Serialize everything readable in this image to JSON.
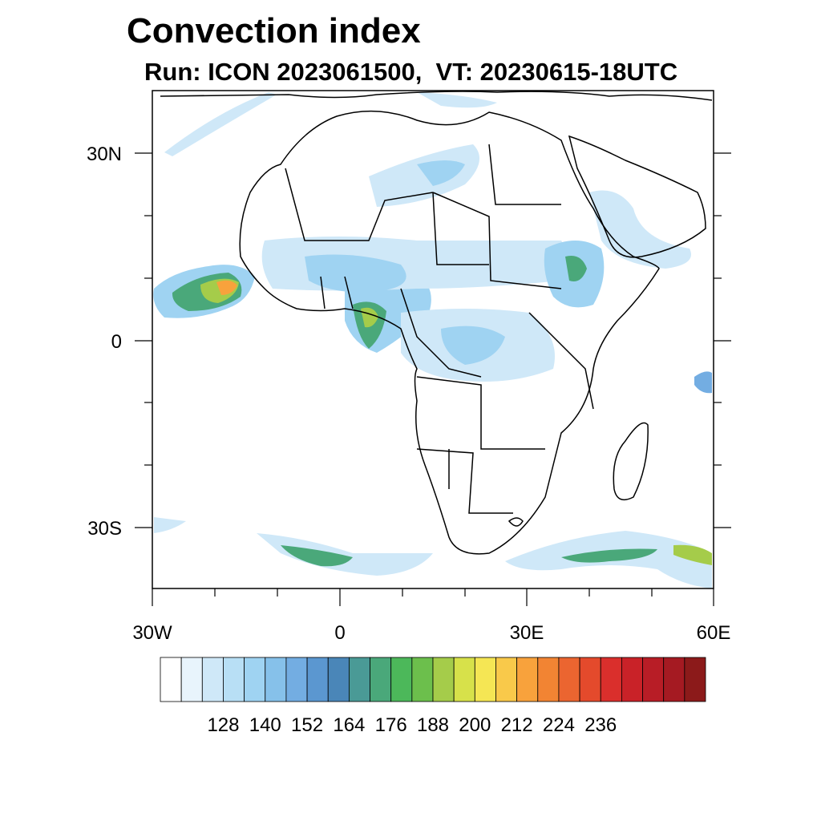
{
  "title": "Convection index",
  "subtitle": "Run: ICON 2023061500,  VT: 20230615-18UTC",
  "axes": {
    "lon_labels": [
      "30W",
      "0",
      "30E",
      "60E"
    ],
    "lat_labels": [
      "30N",
      "0",
      "30S"
    ],
    "lon_range": [
      -30,
      60
    ],
    "lat_range": [
      -40,
      40
    ]
  },
  "colorbar": {
    "labels": [
      "128",
      "140",
      "152",
      "164",
      "176",
      "188",
      "200",
      "212",
      "224",
      "236"
    ],
    "colors": [
      "#ffffff",
      "#e8f4fc",
      "#cfe8f8",
      "#b8dff5",
      "#9fd3f2",
      "#86c1ea",
      "#73ade2",
      "#5b97d0",
      "#4a86b8",
      "#4a9a96",
      "#4aa87a",
      "#4cb85a",
      "#6cbf4c",
      "#a5cc4a",
      "#d7e14a",
      "#f5e654",
      "#f9c94a",
      "#f8a23c",
      "#f28433",
      "#eb6530",
      "#e44a2c",
      "#da2f2c",
      "#c92228",
      "#b81d26",
      "#a51a22",
      "#8c1a1a"
    ]
  },
  "map_colors": {
    "c1": "#cfe8f8",
    "c2": "#9fd3f2",
    "c3": "#73ade2",
    "c4": "#4aa87a",
    "c5": "#a5cc4a",
    "c6": "#f5e654",
    "c7": "#f8a23c"
  }
}
